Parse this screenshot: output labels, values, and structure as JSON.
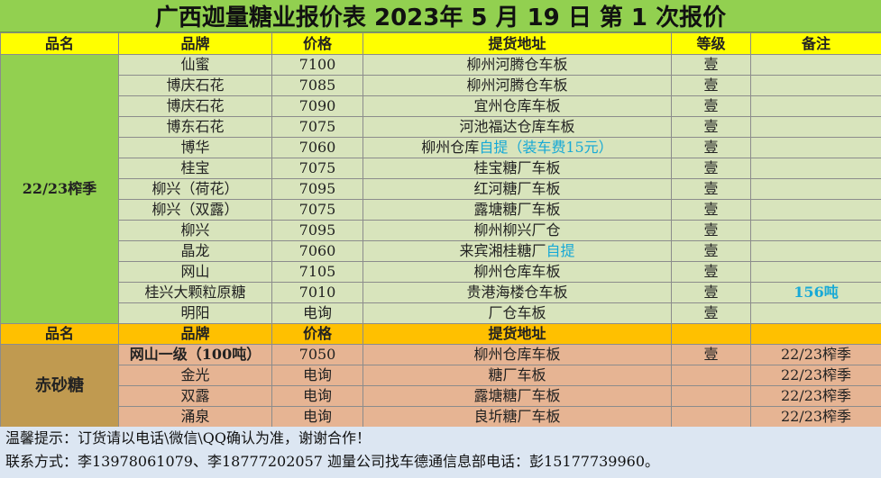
{
  "title": "广西迦量糖业报价表 2023年 5 月 19 日 第 1 次报价",
  "header1": {
    "col1": "品名",
    "col2": "品牌",
    "col3": "价格",
    "col4": "提货地址",
    "col5": "等级",
    "col6": "备注"
  },
  "section1": {
    "category": "22/23榨季",
    "rows": [
      {
        "brand": "仙蜜",
        "price": "7100",
        "addr": "柳州河腾仓车板",
        "addr_extra": "",
        "grade": "壹",
        "note": ""
      },
      {
        "brand": "博庆石花",
        "price": "7085",
        "addr": "柳州河腾仓车板",
        "addr_extra": "",
        "grade": "壹",
        "note": ""
      },
      {
        "brand": "博庆石花",
        "price": "7090",
        "addr": "宜州仓库车板",
        "addr_extra": "",
        "grade": "壹",
        "note": ""
      },
      {
        "brand": "博东石花",
        "price": "7075",
        "addr": "河池福达仓库车板",
        "addr_extra": "",
        "grade": "壹",
        "note": ""
      },
      {
        "brand": "博华",
        "price": "7060",
        "addr": "柳州仓库",
        "addr_extra": "自提（装车费15元）",
        "grade": "壹",
        "note": ""
      },
      {
        "brand": "桂宝",
        "price": "7075",
        "addr": "桂宝糖厂车板",
        "addr_extra": "",
        "grade": "壹",
        "note": ""
      },
      {
        "brand": "柳兴（荷花）",
        "price": "7095",
        "addr": "红河糖厂车板",
        "addr_extra": "",
        "grade": "壹",
        "note": ""
      },
      {
        "brand": "柳兴（双露）",
        "price": "7075",
        "addr": "露塘糖厂车板",
        "addr_extra": "",
        "grade": "壹",
        "note": ""
      },
      {
        "brand": "柳兴",
        "price": "7095",
        "addr": "柳州柳兴厂仓",
        "addr_extra": "",
        "grade": "壹",
        "note": ""
      },
      {
        "brand": "晶龙",
        "price": "7060",
        "addr": "来宾湘桂糖厂",
        "addr_extra": "自提",
        "grade": "壹",
        "note": ""
      },
      {
        "brand": "网山",
        "price": "7105",
        "addr": "柳州仓库车板",
        "addr_extra": "",
        "grade": "壹",
        "note": ""
      },
      {
        "brand": "桂兴大颗粒原糖",
        "price": "7010",
        "addr": "贵港海楼仓车板",
        "addr_extra": "",
        "grade": "壹",
        "note": "156吨"
      },
      {
        "brand": "明阳",
        "price": "电询",
        "addr": "厂仓车板",
        "addr_extra": "",
        "grade": "壹",
        "note": ""
      }
    ]
  },
  "header2": {
    "col1": "品名",
    "col2": "品牌",
    "col3": "价格",
    "col4": "提货地址"
  },
  "section2": {
    "category": "赤砂糖",
    "rows": [
      {
        "brand": "网山一级（100吨）",
        "price": "7050",
        "addr": "柳州仓库车板",
        "grade": "壹",
        "note": "22/23榨季"
      },
      {
        "brand": "金光",
        "price": "电询",
        "addr": "糖厂车板",
        "grade": "",
        "note": "22/23榨季"
      },
      {
        "brand": "双露",
        "price": "电询",
        "addr": "露塘糖厂车板",
        "grade": "",
        "note": "22/23榨季"
      },
      {
        "brand": "涌泉",
        "price": "电询",
        "addr": "良圻糖厂车板",
        "grade": "",
        "note": "22/23榨季"
      }
    ]
  },
  "footer": {
    "line1": "温馨提示：订货请以电话\\微信\\QQ确认为准，谢谢合作！",
    "line2": "联系方式：李13978061079、李18777202057    迦量公司找车德通信息部电话：彭15177739960。"
  }
}
